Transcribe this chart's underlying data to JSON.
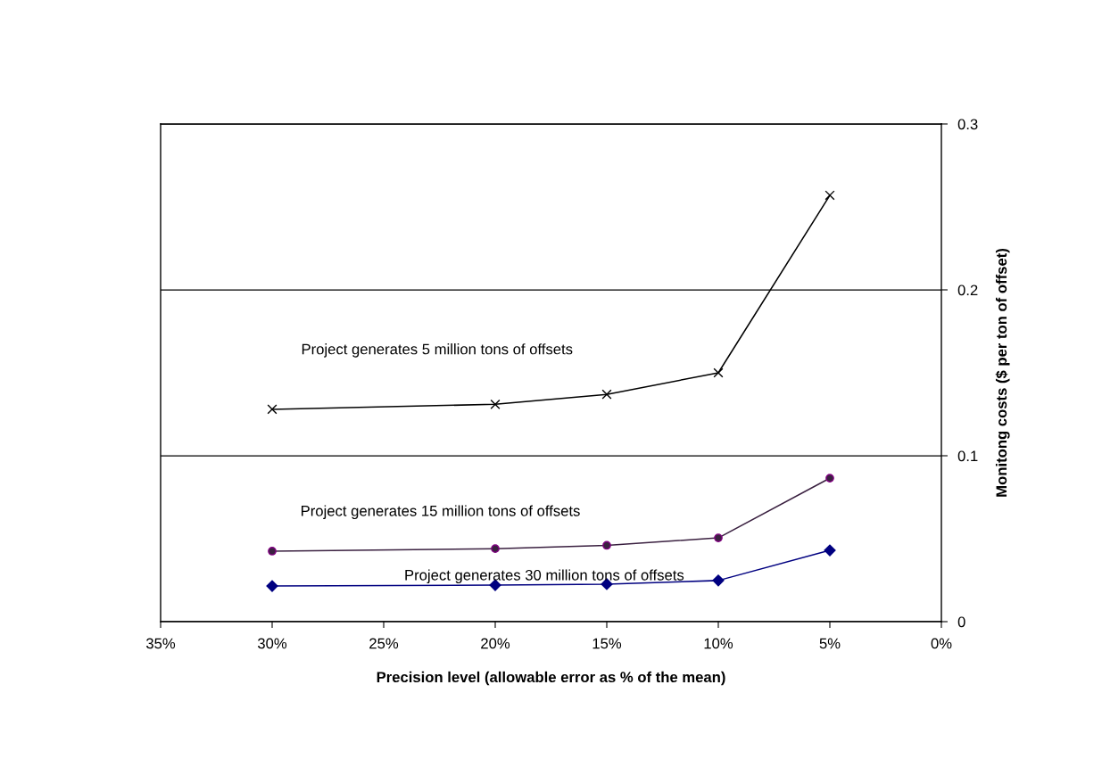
{
  "chart_data": {
    "type": "line",
    "xlabel": "Precision level (allowable error as % of the mean)",
    "ylabel": "Monitong costs ($ per ton of offset)",
    "x": [
      30,
      20,
      15,
      10,
      5
    ],
    "series": [
      {
        "name": "Project generates 5 million tons of offsets",
        "color": "#000000",
        "marker": "cross",
        "values": [
          0.128,
          0.131,
          0.137,
          0.15,
          0.257
        ]
      },
      {
        "name": "Project generates 15 million tons of offsets",
        "color": "#3a2040",
        "marker": "circle",
        "values": [
          0.0425,
          0.044,
          0.046,
          0.0505,
          0.0865
        ]
      },
      {
        "name": "Project generates 30 million tons of offsets",
        "color": "#000080",
        "marker": "diamond",
        "values": [
          0.0215,
          0.022,
          0.0226,
          0.0248,
          0.043
        ]
      }
    ],
    "xlim": [
      35,
      0
    ],
    "xticks": [
      {
        "value": 35,
        "label": "35%"
      },
      {
        "value": 30,
        "label": "30%"
      },
      {
        "value": 25,
        "label": "25%"
      },
      {
        "value": 20,
        "label": "20%"
      },
      {
        "value": 15,
        "label": "15%"
      },
      {
        "value": 10,
        "label": "10%"
      },
      {
        "value": 5,
        "label": "5%"
      },
      {
        "value": 0,
        "label": "0%"
      }
    ],
    "ylim": [
      0,
      0.3
    ],
    "yticks": [
      0,
      0.1,
      0.2,
      0.3
    ],
    "grid": "y",
    "line_style": "solid"
  }
}
